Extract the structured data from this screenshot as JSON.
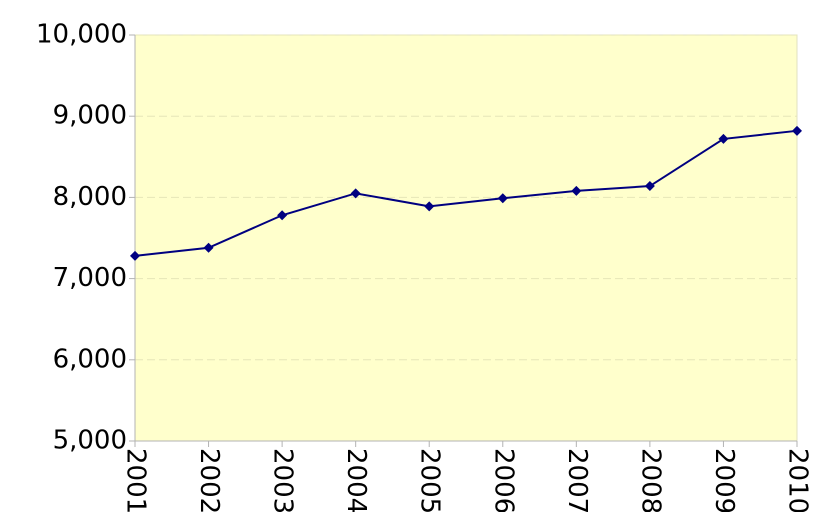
{
  "chart_data": {
    "type": "line",
    "categories": [
      "2001",
      "2002",
      "2003",
      "2004",
      "2005",
      "2006",
      "2007",
      "2008",
      "2009",
      "2010"
    ],
    "series": [
      {
        "color": "#000080",
        "values": [
          7280,
          7380,
          7780,
          8050,
          7890,
          7990,
          8080,
          8140,
          8720,
          8820
        ]
      }
    ],
    "ylim": [
      5000,
      10000
    ],
    "yticks": [
      {
        "value": 5000,
        "label": "5,000"
      },
      {
        "value": 6000,
        "label": "6,000"
      },
      {
        "value": 7000,
        "label": "7,000"
      },
      {
        "value": 8000,
        "label": "8,000"
      },
      {
        "value": 9000,
        "label": "9,000"
      },
      {
        "value": 10000,
        "label": "10,000"
      }
    ],
    "grid": true,
    "background": "#ffffcc"
  }
}
